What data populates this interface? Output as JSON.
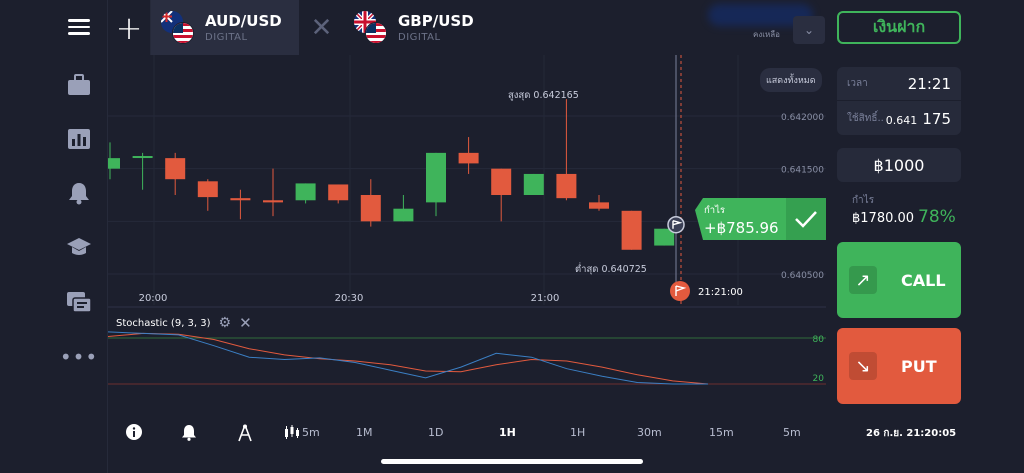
{
  "topbar": {
    "tabs": [
      {
        "pair": "AUD/USD",
        "type": "DIGITAL"
      },
      {
        "pair": "GBP/USD",
        "type": "DIGITAL"
      }
    ],
    "balance_label": "คงเหลือ",
    "deposit_label": "เงินฝาก"
  },
  "panel": {
    "time_label": "เวลา",
    "time_value": "21:21",
    "strike_label": "ใช้สิทธิ์..",
    "strike_prefix": "0.641",
    "strike_suffix": "175",
    "amount": "฿1000",
    "profit_label": "กำไร",
    "profit_value": "฿1780.00",
    "profit_pct": "78%",
    "call_label": "CALL",
    "put_label": "PUT"
  },
  "chart": {
    "show_all_label": "แสดงทั้งหมด",
    "high_label": "สูงสุด 0.642165",
    "low_label": "ต่ำสุด 0.640725",
    "y_ticks": [
      "0.642000",
      "0.641500",
      "0.641000",
      "0.640500"
    ],
    "x_ticks": [
      "20:00",
      "20:30",
      "21:00"
    ],
    "expiry_time": "21:21:00",
    "profit_badge_label": "กำไร",
    "profit_badge_value": "+฿785.96",
    "oscillator_label": "Stochastic (9, 3, 3)",
    "osc_levels": [
      "80",
      "20"
    ]
  },
  "chart_data": {
    "type": "candlestick",
    "y_unit": "price",
    "candles": [
      {
        "o": 0.6415,
        "h": 0.64175,
        "l": 0.6414,
        "c": 0.6416
      },
      {
        "o": 0.64162,
        "h": 0.64165,
        "l": 0.6413,
        "c": 0.64162
      },
      {
        "o": 0.6416,
        "h": 0.64165,
        "l": 0.64125,
        "c": 0.6414
      },
      {
        "o": 0.64138,
        "h": 0.6414,
        "l": 0.6411,
        "c": 0.64123
      },
      {
        "o": 0.64122,
        "h": 0.6413,
        "l": 0.64102,
        "c": 0.6412
      },
      {
        "o": 0.6412,
        "h": 0.6415,
        "l": 0.64105,
        "c": 0.64118
      },
      {
        "o": 0.6412,
        "h": 0.64136,
        "l": 0.64117,
        "c": 0.64136
      },
      {
        "o": 0.64135,
        "h": 0.64135,
        "l": 0.64117,
        "c": 0.6412
      },
      {
        "o": 0.64125,
        "h": 0.6414,
        "l": 0.64095,
        "c": 0.641
      },
      {
        "o": 0.641,
        "h": 0.64125,
        "l": 0.641,
        "c": 0.64112
      },
      {
        "o": 0.64118,
        "h": 0.64165,
        "l": 0.64105,
        "c": 0.64165
      },
      {
        "o": 0.64165,
        "h": 0.6418,
        "l": 0.64145,
        "c": 0.64155
      },
      {
        "o": 0.6415,
        "h": 0.6415,
        "l": 0.641,
        "c": 0.64125
      },
      {
        "o": 0.64125,
        "h": 0.64145,
        "l": 0.64125,
        "c": 0.64145
      },
      {
        "o": 0.64145,
        "h": 0.64216,
        "l": 0.6412,
        "c": 0.64122
      },
      {
        "o": 0.64118,
        "h": 0.64125,
        "l": 0.6411,
        "c": 0.64112
      },
      {
        "o": 0.6411,
        "h": 0.6411,
        "l": 0.64073,
        "c": 0.64073
      },
      {
        "o": 0.64077,
        "h": 0.64093,
        "l": 0.64077,
        "c": 0.64093
      }
    ],
    "current_price": 0.64093,
    "strike_price": 0.641175,
    "stochastic": {
      "k": [
        88,
        86,
        84,
        70,
        55,
        52,
        54,
        48,
        38,
        28,
        42,
        60,
        55,
        40,
        30,
        22,
        20,
        20
      ],
      "d": [
        82,
        86,
        85,
        78,
        66,
        58,
        53,
        50,
        45,
        37,
        36,
        45,
        52,
        50,
        42,
        32,
        24,
        20
      ]
    }
  },
  "bottom": {
    "timeframe": "5m",
    "periods": [
      "1M",
      "1D",
      "1H",
      "1H",
      "30m",
      "15m",
      "5m"
    ],
    "datetime": "26 ก.ย. 21:20:05"
  }
}
